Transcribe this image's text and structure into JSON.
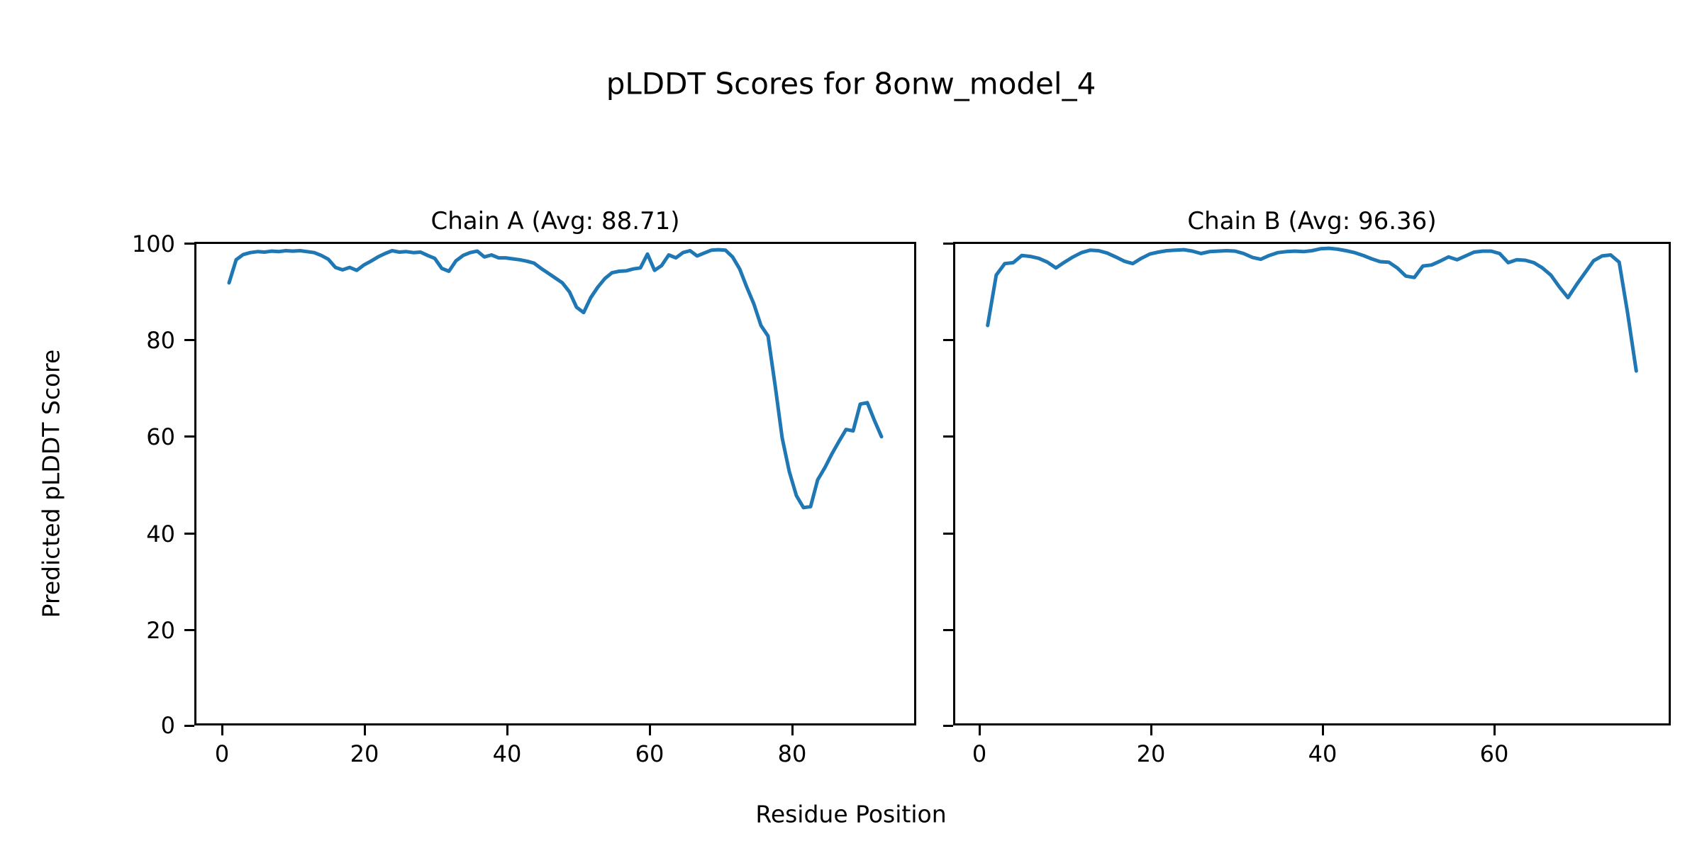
{
  "figure": {
    "title": "pLDDT Scores for 8onw_model_4",
    "xlabel": "Residue Position",
    "ylabel": "Predicted pLDDT Score",
    "background": "#ffffff",
    "line_color": "#1f77b4",
    "axis_color": "#000000"
  },
  "chart_data": [
    {
      "type": "line",
      "title": "Chain A (Avg: 88.71)",
      "chain": "A",
      "avg": 88.71,
      "n_residues": 93,
      "x_start": 1,
      "x_note": "x values are sequential residue positions 1..93",
      "xlim": [
        -3.6,
        97.6
      ],
      "ylim": [
        0,
        100
      ],
      "grid": false,
      "legend": "none",
      "xtick_values": [
        0,
        20,
        40,
        60,
        80
      ],
      "xtick_labels": [
        "0",
        "20",
        "40",
        "60",
        "80"
      ],
      "ytick_values": [
        100,
        80,
        60,
        40,
        20,
        0
      ],
      "ytick_labels": [
        "100",
        "80",
        "60",
        "40",
        "20",
        "0"
      ],
      "values": [
        91.9,
        96.7,
        97.8,
        98.2,
        98.4,
        98.3,
        98.5,
        98.4,
        98.6,
        98.5,
        98.6,
        98.4,
        98.2,
        97.6,
        96.8,
        95.1,
        94.6,
        95.1,
        94.5,
        95.6,
        96.4,
        97.3,
        98.0,
        98.6,
        98.3,
        98.4,
        98.2,
        98.3,
        97.6,
        97.0,
        94.9,
        94.3,
        96.5,
        97.6,
        98.2,
        98.5,
        97.3,
        97.7,
        97.1,
        97.1,
        96.9,
        96.7,
        96.4,
        96.0,
        94.9,
        93.9,
        92.9,
        91.9,
        90.0,
        86.8,
        85.7,
        88.8,
        91.0,
        92.8,
        94.0,
        94.3,
        94.4,
        94.8,
        95.0,
        97.9,
        94.5,
        95.5,
        97.7,
        97.1,
        98.2,
        98.6,
        97.5,
        98.1,
        98.7,
        98.8,
        98.7,
        97.3,
        94.8,
        91.0,
        87.5,
        83.0,
        80.8,
        70.5,
        59.5,
        52.5,
        47.5,
        45.0,
        45.2,
        50.8,
        53.3,
        56.2,
        58.8,
        61.3,
        61.0,
        66.6,
        66.9,
        63.2,
        59.8
      ]
    },
    {
      "type": "line",
      "title": "Chain B (Avg: 96.36)",
      "chain": "B",
      "avg": 96.36,
      "n_residues": 77,
      "x_start": 1,
      "x_note": "x values are sequential residue positions 1..77",
      "xlim": [
        -2.8,
        80.8
      ],
      "ylim": [
        0,
        100
      ],
      "grid": false,
      "legend": "none",
      "xtick_values": [
        0,
        20,
        40,
        60
      ],
      "xtick_labels": [
        "0",
        "20",
        "40",
        "60"
      ],
      "ytick_values": [
        100,
        80,
        60,
        40,
        20,
        0
      ],
      "ytick_labels": [],
      "values": [
        83.0,
        93.5,
        95.9,
        96.1,
        97.6,
        97.4,
        97.0,
        96.2,
        95.0,
        96.2,
        97.3,
        98.2,
        98.7,
        98.6,
        98.1,
        97.3,
        96.4,
        95.9,
        97.0,
        97.9,
        98.3,
        98.6,
        98.7,
        98.8,
        98.5,
        98.0,
        98.4,
        98.5,
        98.6,
        98.5,
        98.0,
        97.2,
        96.8,
        97.6,
        98.2,
        98.4,
        98.5,
        98.4,
        98.6,
        99.0,
        99.1,
        98.9,
        98.6,
        98.2,
        97.6,
        96.9,
        96.3,
        96.2,
        95.0,
        93.3,
        93.0,
        95.4,
        95.6,
        96.4,
        97.3,
        96.7,
        97.5,
        98.3,
        98.5,
        98.5,
        98.0,
        96.1,
        96.7,
        96.6,
        96.1,
        95.0,
        93.5,
        91.0,
        88.8,
        91.5,
        94.0,
        96.5,
        97.5,
        97.7,
        96.2,
        85.5,
        73.5
      ]
    }
  ]
}
